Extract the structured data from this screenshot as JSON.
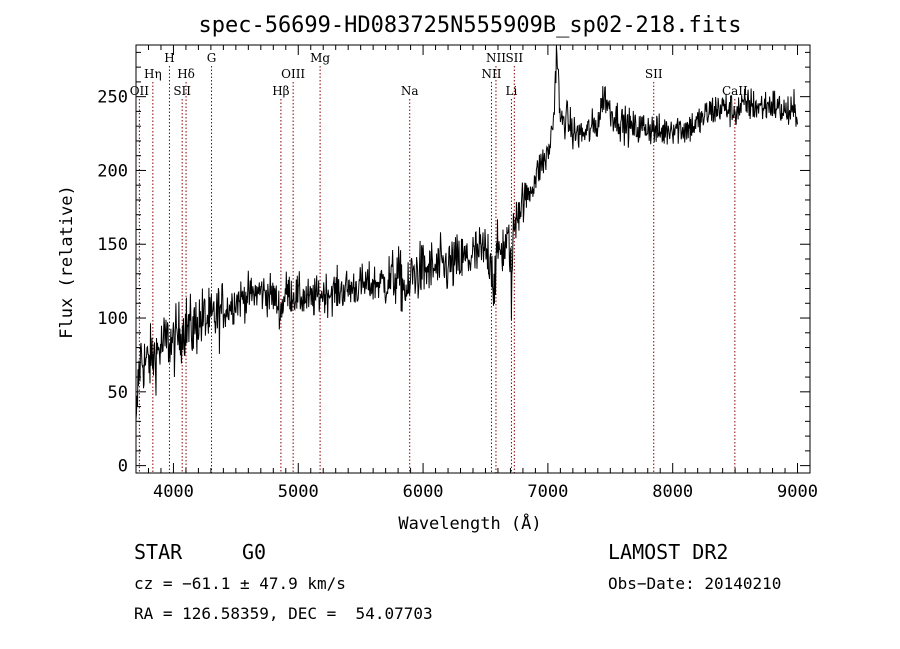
{
  "chart_data": {
    "type": "line",
    "title": "spec-56699-HD083725N555909B_sp02-218.fits",
    "xlabel": "Wavelength (Å)",
    "ylabel": "Flux (relative)",
    "xlim": [
      3700,
      9100
    ],
    "ylim": [
      -5,
      285
    ],
    "xticks": [
      4000,
      5000,
      6000,
      7000,
      8000,
      9000
    ],
    "yticks": [
      0,
      50,
      100,
      150,
      200,
      250
    ],
    "grid": false,
    "spectrum_anchors": {
      "x": [
        3700,
        3720,
        3740,
        3760,
        3800,
        3850,
        3900,
        3950,
        4000,
        4050,
        4100,
        4150,
        4200,
        4250,
        4300,
        4350,
        4400,
        4450,
        4500,
        4600,
        4700,
        4800,
        4861,
        4900,
        5000,
        5100,
        5200,
        5300,
        5400,
        5500,
        5600,
        5700,
        5800,
        5890,
        5900,
        6000,
        6100,
        6200,
        6300,
        6400,
        6500,
        6550,
        6563,
        6600,
        6650,
        6700,
        6708,
        6720,
        6750,
        6800,
        6850,
        6900,
        6950,
        7000,
        7030,
        7050,
        7070,
        7100,
        7150,
        7200,
        7300,
        7400,
        7450,
        7500,
        7600,
        7700,
        7800,
        7900,
        8000,
        8100,
        8200,
        8300,
        8400,
        8500,
        8600,
        8700,
        8800,
        8850,
        8900,
        8950,
        9000
      ],
      "y": [
        20,
        60,
        75,
        70,
        70,
        75,
        80,
        85,
        82,
        90,
        95,
        92,
        98,
        100,
        97,
        102,
        105,
        108,
        112,
        115,
        118,
        115,
        105,
        118,
        115,
        112,
        117,
        118,
        120,
        122,
        123,
        125,
        128,
        115,
        130,
        132,
        133,
        135,
        138,
        142,
        145,
        140,
        120,
        145,
        148,
        150,
        110,
        152,
        175,
        178,
        185,
        195,
        205,
        210,
        225,
        240,
        285,
        232,
        236,
        225,
        225,
        232,
        252,
        240,
        232,
        228,
        230,
        225,
        230,
        228,
        232,
        240,
        243,
        240,
        245,
        243,
        245,
        242,
        240,
        238,
        242
      ]
    },
    "annotations": [
      {
        "label": "OII",
        "x": 3727,
        "row": 3
      },
      {
        "label": "Hη",
        "x": 3835,
        "row": 2
      },
      {
        "label": "H",
        "x": 3968,
        "row": 1
      },
      {
        "label": "Hδ",
        "x": 4101,
        "row": 2
      },
      {
        "label": "SII",
        "x": 4070,
        "row": 3
      },
      {
        "label": "G",
        "x": 4305,
        "row": 1
      },
      {
        "label": "Hβ",
        "x": 4861,
        "row": 3
      },
      {
        "label": "OIII",
        "x": 4959,
        "row": 2
      },
      {
        "label": "Mg",
        "x": 5175,
        "row": 1
      },
      {
        "label": "Na",
        "x": 5893,
        "row": 3
      },
      {
        "label": "NII",
        "x": 6548,
        "row": 2
      },
      {
        "label": "NII",
        "x": 6584,
        "row": 1
      },
      {
        "label": "Li",
        "x": 6708,
        "row": 3
      },
      {
        "label": "SII",
        "x": 6731,
        "row": 1
      },
      {
        "label": "SII",
        "x": 7848,
        "row": 2
      },
      {
        "label": "CaII",
        "x": 8498,
        "row": 3
      }
    ],
    "annotation_color": "#8b0000"
  },
  "info": {
    "class": "STAR",
    "subclass": "G0",
    "survey": "LAMOST DR2",
    "cz": "cz = −61.1 ± 47.9 km/s",
    "obs_date": "Obs−Date: 20140210",
    "coords": "RA = 126.58359, DEC =  54.07703"
  }
}
